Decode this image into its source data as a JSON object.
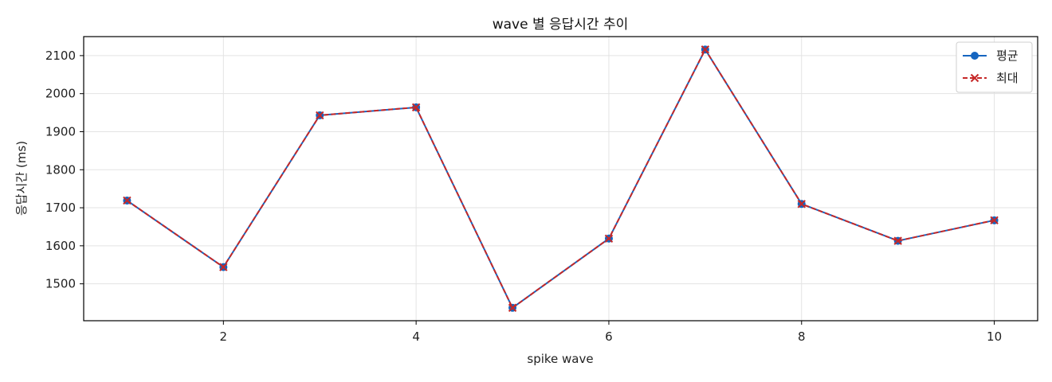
{
  "chart_data": {
    "type": "line",
    "title": "wave 별 응답시간 추이",
    "xlabel": "spike wave",
    "ylabel": "응답시간 (ms)",
    "x": [
      1,
      2,
      3,
      4,
      5,
      6,
      7,
      8,
      9,
      10
    ],
    "xlim": [
      0.55,
      10.45
    ],
    "ylim": [
      1403,
      2150
    ],
    "xticks": [
      2,
      4,
      6,
      8,
      10
    ],
    "yticks": [
      1500,
      1600,
      1700,
      1800,
      1900,
      2000,
      2100
    ],
    "grid": true,
    "legend_position": "top-right",
    "series": [
      {
        "name": "평균",
        "color": "#1565c0",
        "style": "solid",
        "marker": "circle",
        "values": [
          1719,
          1544,
          1943,
          1964,
          1437,
          1619,
          2116,
          1710,
          1613,
          1667
        ]
      },
      {
        "name": "최대",
        "color": "#c62828",
        "style": "dashed",
        "marker": "x",
        "values": [
          1719,
          1544,
          1943,
          1964,
          1437,
          1619,
          2116,
          1710,
          1613,
          1667
        ]
      }
    ]
  }
}
